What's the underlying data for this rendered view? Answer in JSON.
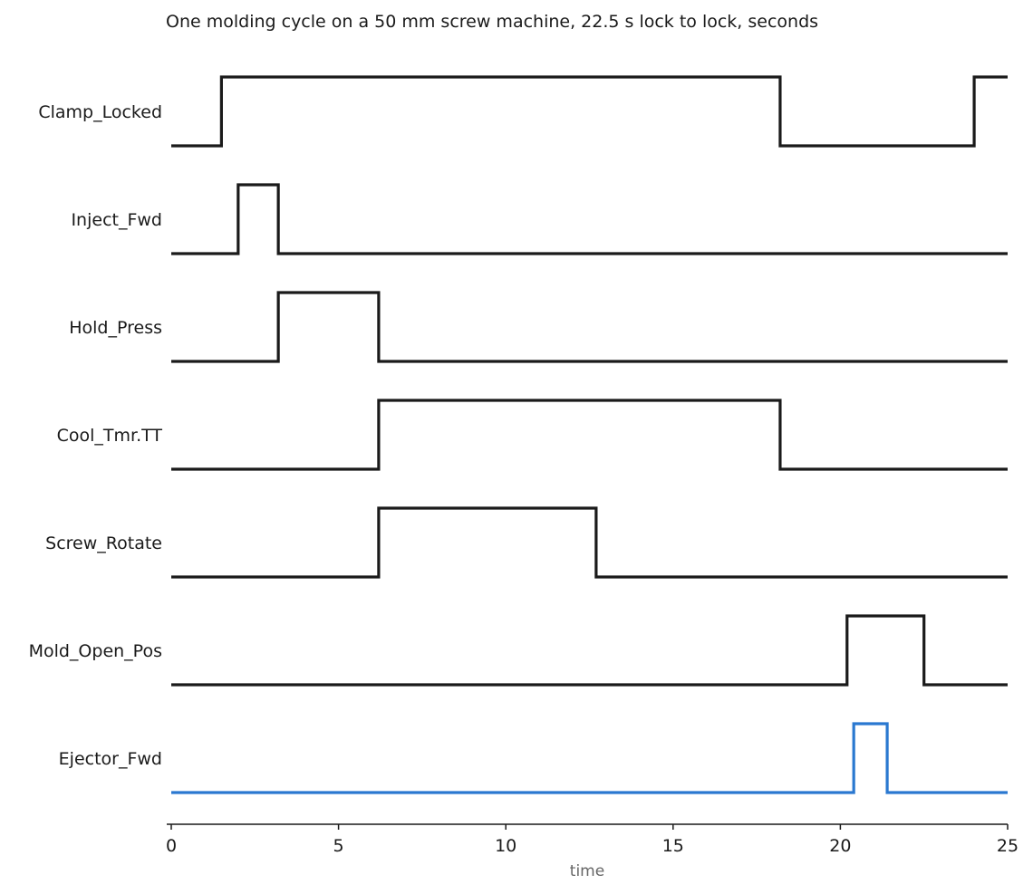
{
  "chart_data": {
    "type": "line",
    "subtype": "digital-timing-diagram",
    "title": "One molding cycle on a 50 mm screw machine, 22.5 s lock to lock, seconds",
    "xlabel": "time",
    "ylabel": "",
    "xlim": [
      0,
      25
    ],
    "xticks": [
      0,
      5,
      10,
      15,
      20,
      25
    ],
    "grid": false,
    "legend": "none",
    "colors": {
      "default": "#1a1a1a",
      "highlight": "#2a78d0",
      "axis": "#1a1a1a",
      "axis_title": "#666666"
    },
    "series": [
      {
        "name": "Clamp_Locked",
        "initial": 0,
        "transitions": [
          1.5,
          18.2,
          24.0
        ],
        "highlight": false
      },
      {
        "name": "Inject_Fwd",
        "initial": 0,
        "transitions": [
          2.0,
          3.2
        ],
        "highlight": false
      },
      {
        "name": "Hold_Press",
        "initial": 0,
        "transitions": [
          3.2,
          6.2
        ],
        "highlight": false
      },
      {
        "name": "Cool_Tmr.TT",
        "initial": 0,
        "transitions": [
          6.2,
          18.2
        ],
        "highlight": false
      },
      {
        "name": "Screw_Rotate",
        "initial": 0,
        "transitions": [
          6.2,
          12.7
        ],
        "highlight": false
      },
      {
        "name": "Mold_Open_Pos",
        "initial": 0,
        "transitions": [
          20.2,
          22.5
        ],
        "highlight": false
      },
      {
        "name": "Ejector_Fwd",
        "initial": 0,
        "transitions": [
          20.4,
          21.4
        ],
        "highlight": true
      }
    ]
  }
}
